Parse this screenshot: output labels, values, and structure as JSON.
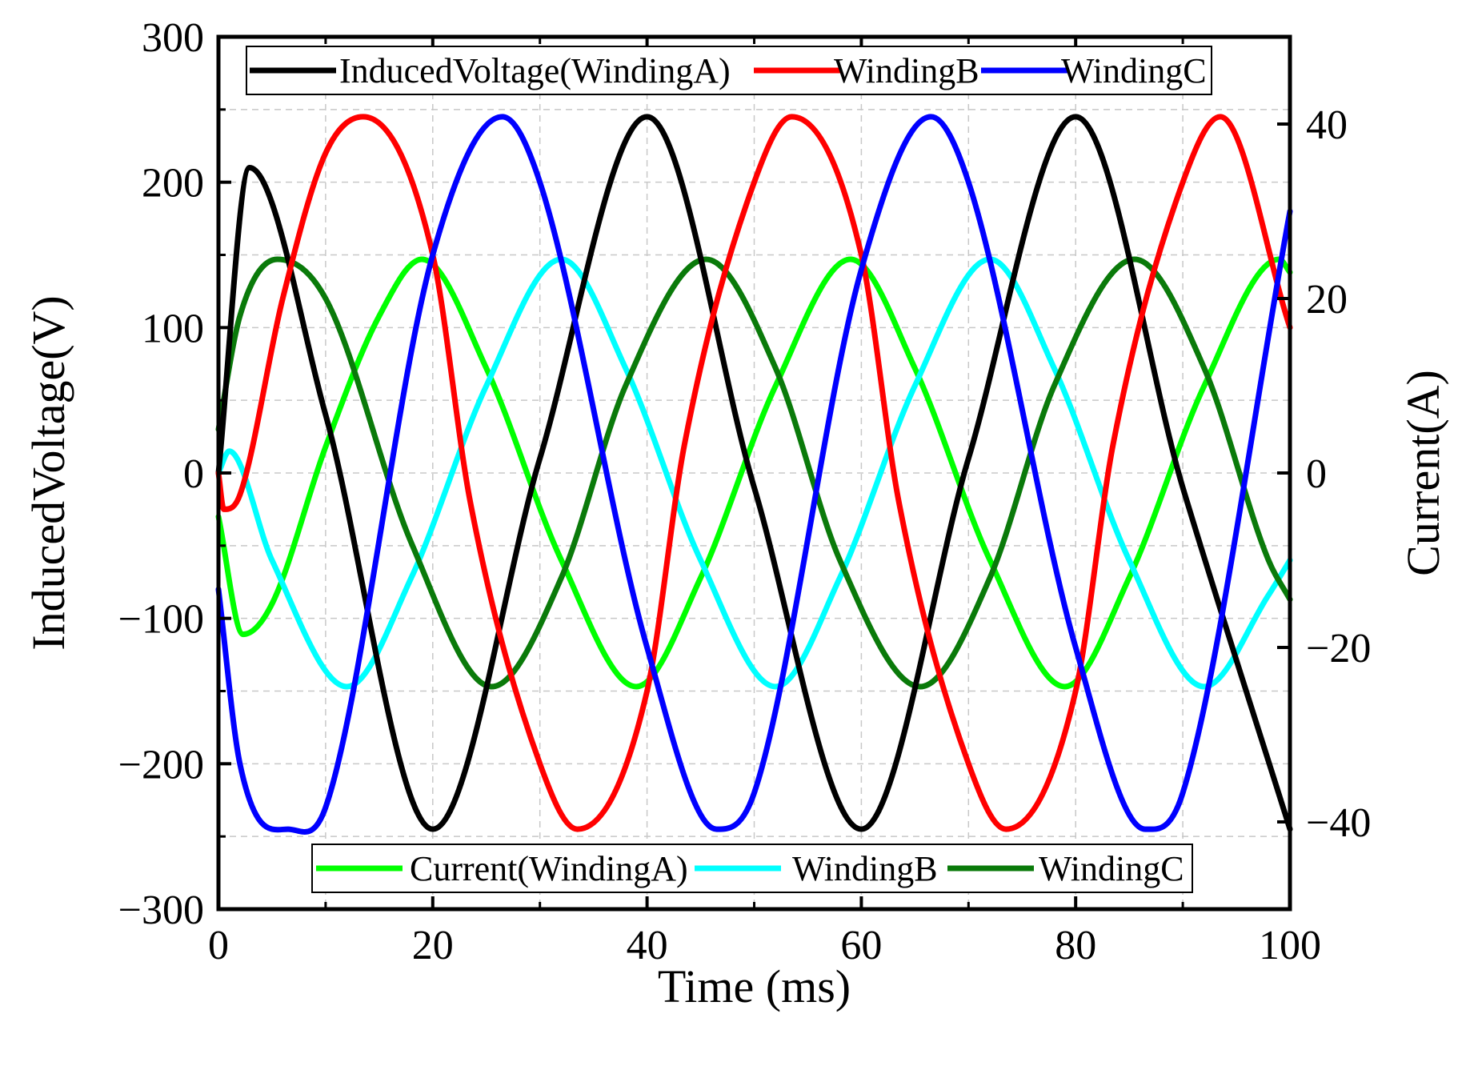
{
  "chart_data": {
    "type": "line",
    "xlabel": "Time (ms)",
    "ylabel_left": "InducedVoltage(V)",
    "ylabel_right": "Current(A)",
    "xlim": [
      0,
      100
    ],
    "ylim_left": [
      -300,
      300
    ],
    "ylim_right": [
      -50,
      50
    ],
    "grid": true,
    "x_ticks": [
      "0",
      "20",
      "40",
      "60",
      "80",
      "100"
    ],
    "y_left_ticks": [
      "300",
      "200",
      "100",
      "0",
      "−100",
      "−200",
      "−300"
    ],
    "y_right_ticks": [
      "40",
      "20",
      "0",
      "−20",
      "−40"
    ],
    "legend_voltage": {
      "placement": "top",
      "entries": [
        "InducedVoltage(WindingA)",
        "WindingB",
        "WindingC"
      ]
    },
    "legend_current": {
      "placement": "bottom",
      "entries": [
        "Current(WindingA)",
        "WindingB",
        "WindingC"
      ]
    },
    "series": [
      {
        "name": "InducedVoltage(WindingA)",
        "axis": "left",
        "color": "#000000",
        "x": [
          0,
          2.9,
          10,
          20,
          30,
          40,
          50,
          60,
          70,
          80,
          90,
          100
        ],
        "y": [
          0,
          210,
          40,
          -245,
          10,
          245,
          -10,
          -245,
          10,
          245,
          -10,
          -245
        ]
      },
      {
        "name": "WindingB",
        "axis": "left",
        "color": "#ff0000",
        "x": [
          0,
          0.5,
          2,
          6,
          10,
          13.5,
          20,
          23.5,
          30,
          33.5,
          40,
          43.5,
          50,
          53.5,
          60,
          63.5,
          70,
          73.5,
          80,
          83.5,
          90,
          93.5,
          100
        ],
        "y": [
          0,
          -25,
          -15,
          120,
          220,
          245,
          150,
          -20,
          -200,
          -245,
          -150,
          20,
          200,
          245,
          150,
          -20,
          -200,
          -245,
          -150,
          20,
          200,
          245,
          100
        ]
      },
      {
        "name": "WindingC",
        "axis": "left",
        "color": "#0000ff",
        "x": [
          0,
          2,
          6.5,
          10,
          20,
          26.5,
          30,
          40,
          46.5,
          50,
          60,
          66.5,
          70,
          80,
          86.5,
          90,
          100
        ],
        "y": [
          -80,
          -200,
          -245,
          -230,
          150,
          245,
          200,
          -120,
          -245,
          -220,
          140,
          245,
          200,
          -120,
          -245,
          -220,
          180
        ]
      },
      {
        "name": "Current(WindingA)",
        "axis": "right",
        "color": "#00ff00",
        "x": [
          0,
          2.3,
          5,
          10,
          15,
          19,
          25,
          32,
          39,
          45,
          52,
          59,
          65,
          72,
          79,
          85,
          92,
          99,
          100
        ],
        "y": [
          -5,
          -18.5,
          -15,
          3,
          18,
          24.5,
          12,
          -10,
          -24.5,
          -12,
          10,
          24.5,
          12,
          -10,
          -24.5,
          -12,
          10,
          24.5,
          23
        ]
      },
      {
        "name": "WindingB",
        "axis": "right",
        "color": "#00ffff",
        "x": [
          0,
          1,
          5,
          12,
          18,
          25,
          32,
          38,
          45,
          52,
          58,
          65,
          72,
          78,
          85,
          92,
          98,
          100
        ],
        "y": [
          0,
          2.5,
          -10,
          -24.5,
          -12,
          10,
          24.5,
          12,
          -10,
          -24.5,
          -12,
          10,
          24.5,
          12,
          -10,
          -24.5,
          -14,
          -10
        ]
      },
      {
        "name": "WindingC",
        "axis": "right",
        "color": "#0a7a0a",
        "x": [
          0,
          2,
          5.5,
          10,
          18,
          25.5,
          32,
          38,
          45.5,
          52,
          58,
          65.5,
          72,
          78,
          85.5,
          92,
          98,
          100
        ],
        "y": [
          5,
          18,
          24.5,
          20,
          -8,
          -24.5,
          -12,
          10,
          24.5,
          12,
          -10,
          -24.5,
          -12,
          10,
          24.5,
          12,
          -10,
          -14.5
        ]
      }
    ]
  }
}
